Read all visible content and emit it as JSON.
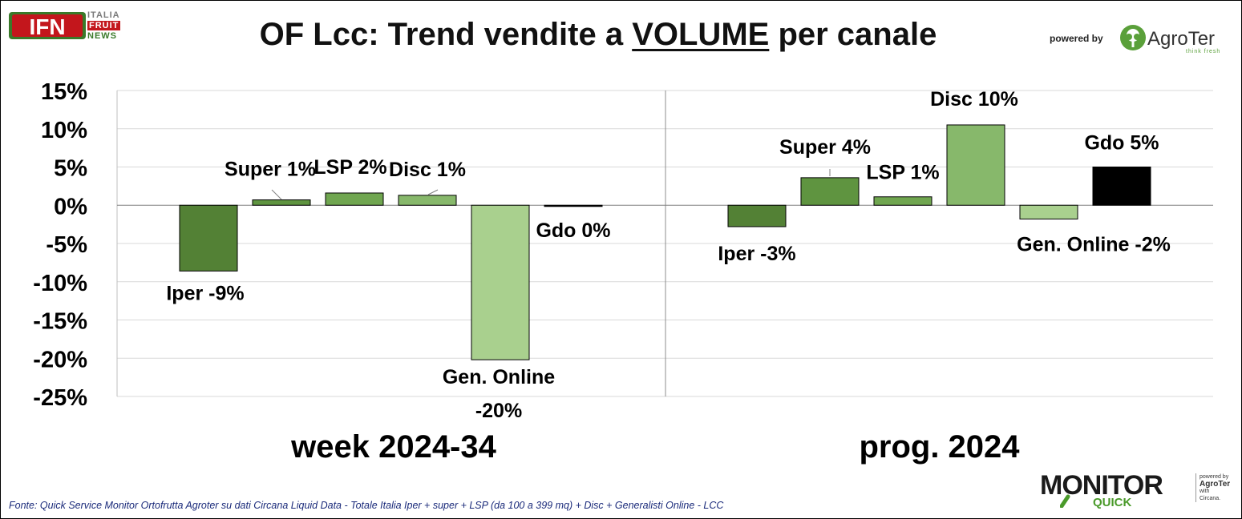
{
  "header": {
    "title_prefix": "OF Lcc: Trend vendite a ",
    "title_emphasis": "VOLUME",
    "title_suffix": " per canale",
    "powered_by": "powered by",
    "ifn_logo_text": "IFN",
    "ifn_tagline": [
      "ITALIA",
      "FRUIT",
      "NEWS"
    ],
    "agroter_name": "AgroTer",
    "agroter_tagline": "think fresh"
  },
  "footer": {
    "source": "Fonte: Quick Service Monitor Ortofrutta Agroter su dati Circana Liquid Data - Totale Italia Iper + super + LSP (da 100 a 399 mq) + Disc + Generalisti Online - LCC",
    "monitor_word": "MONITOR",
    "quick_word": "QUICK",
    "mini_powered": "powered by",
    "mini_agroter": "AgroTer",
    "mini_with": "with",
    "mini_circana": "Circana."
  },
  "chart_data": {
    "type": "bar",
    "ylim": [
      -0.25,
      0.15
    ],
    "yticks": [
      0.15,
      0.1,
      0.05,
      0.0,
      -0.05,
      -0.1,
      -0.15,
      -0.2,
      -0.25
    ],
    "ytick_labels": [
      "15%",
      "10%",
      "5%",
      "0%",
      "-5%",
      "-10%",
      "-15%",
      "-20%",
      "-25%"
    ],
    "grid": true,
    "colors": {
      "Iper": "#538135",
      "Super": "#5f9440",
      "LSP": "#70a650",
      "Disc": "#87b86b",
      "Gen. Online": "#a9d08e",
      "Gdo": "#000000"
    },
    "groups": [
      {
        "name": "week 2024-34",
        "bars": [
          {
            "category": "Iper",
            "value": -0.086,
            "label": "Iper -9%"
          },
          {
            "category": "Super",
            "value": 0.007,
            "label": "Super 1%"
          },
          {
            "category": "LSP",
            "value": 0.016,
            "label": "LSP 2%"
          },
          {
            "category": "Disc",
            "value": 0.013,
            "label": "Disc 1%"
          },
          {
            "category": "Gen. Online",
            "value": -0.202,
            "label": "Gen. Online\n-20%"
          },
          {
            "category": "Gdo",
            "value": -0.001,
            "label": "Gdo 0%"
          }
        ]
      },
      {
        "name": "prog. 2024",
        "bars": [
          {
            "category": "Iper",
            "value": -0.028,
            "label": "Iper -3%"
          },
          {
            "category": "Super",
            "value": 0.036,
            "label": "Super 4%"
          },
          {
            "category": "LSP",
            "value": 0.011,
            "label": "LSP 1%"
          },
          {
            "category": "Disc",
            "value": 0.105,
            "label": "Disc 10%"
          },
          {
            "category": "Gen. Online",
            "value": -0.018,
            "label": "Gen. Online -2%"
          },
          {
            "category": "Gdo",
            "value": 0.05,
            "label": "Gdo 5%"
          }
        ]
      }
    ]
  }
}
